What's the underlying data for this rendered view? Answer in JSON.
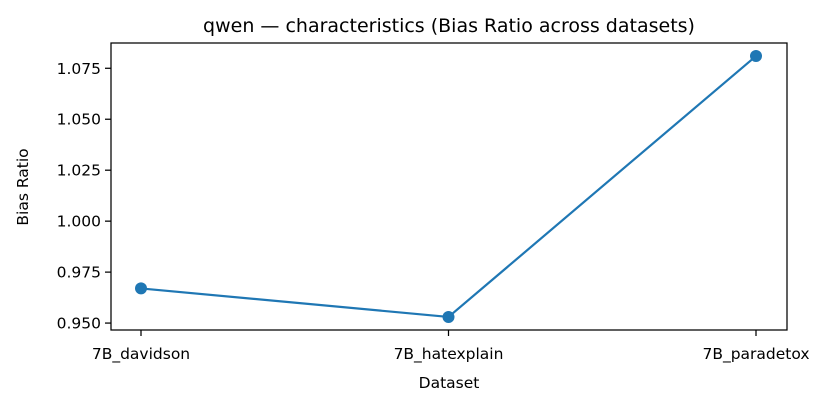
{
  "chart_data": {
    "type": "line",
    "title": "qwen — characteristics (Bias Ratio across datasets)",
    "xlabel": "Dataset",
    "ylabel": "Bias Ratio",
    "categories": [
      "7B_davidson",
      "7B_hatexplain",
      "7B_paradetox"
    ],
    "series": [
      {
        "values": [
          0.967,
          0.953,
          1.081
        ],
        "color": "#1f77b4",
        "marker": "circle"
      }
    ],
    "yticks": [
      0.95,
      0.975,
      1.0,
      1.025,
      1.05,
      1.075
    ],
    "ytick_labels": [
      "0.950",
      "0.975",
      "1.000",
      "1.025",
      "1.050",
      "1.075"
    ],
    "ylim": [
      0.9466,
      1.0874
    ],
    "grid": false,
    "legend": false
  }
}
